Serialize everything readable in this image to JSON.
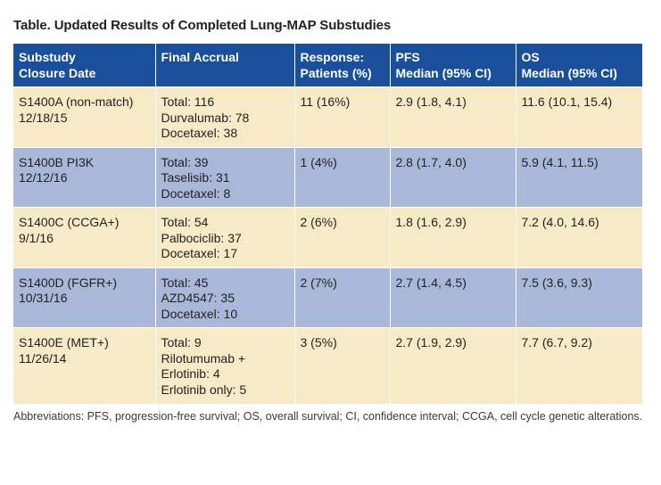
{
  "title": "Table. Updated Results of Completed Lung-MAP Substudies",
  "headers": {
    "substudy": [
      "Substudy",
      "Closure Date"
    ],
    "accrual": [
      "Final Accrual"
    ],
    "response": [
      "Response:",
      "Patients (%)"
    ],
    "pfs": [
      "PFS",
      "Median (95% CI)"
    ],
    "os": [
      "OS",
      "Median (95% CI)"
    ]
  },
  "rows": [
    {
      "substudy": [
        "S1400A (non-match)",
        "12/18/15"
      ],
      "accrual": [
        "Total: 116",
        "Durvalumab: 78",
        "Docetaxel: 38"
      ],
      "response": "11 (16%)",
      "pfs": "2.9 (1.8, 4.1)",
      "os": "11.6 (10.1, 15.4)"
    },
    {
      "substudy": [
        "S1400B PI3K",
        "12/12/16"
      ],
      "accrual": [
        "Total: 39",
        "Taselisib: 31",
        "Docetaxel: 8"
      ],
      "response": "1 (4%)",
      "pfs": "2.8 (1.7, 4.0)",
      "os": "5.9 (4.1, 11.5)"
    },
    {
      "substudy": [
        "S1400C (CCGA+)",
        "9/1/16"
      ],
      "accrual": [
        "Total: 54",
        "Palbociclib: 37",
        "Docetaxel: 17"
      ],
      "response": "2 (6%)",
      "pfs": "1.8 (1.6, 2.9)",
      "os": "7.2 (4.0, 14.6)"
    },
    {
      "substudy": [
        "S1400D (FGFR+)",
        "10/31/16"
      ],
      "accrual": [
        "Total: 45",
        "AZD4547: 35",
        "Docetaxel: 10"
      ],
      "response": "2 (7%)",
      "pfs": "2.7 (1.4, 4.5)",
      "os": "7.5 (3.6, 9.3)"
    },
    {
      "substudy": [
        "S1400E (MET+)",
        "11/26/14"
      ],
      "accrual": [
        "Total: 9",
        "Rilotumumab +",
        "Erlotinib: 4",
        "Erlotinib only: 5"
      ],
      "response": "3 (5%)",
      "pfs": "2.7 (1.9, 2.9)",
      "os": "7.7 (6.7, 9.2)"
    }
  ],
  "footnote": "Abbreviations: PFS, progression-free survival; OS, overall survival; CI, confidence interval; CCGA, cell cycle genetic alterations.",
  "colors": {
    "header_bg": "#1a4f9c",
    "row_light": "#f7ebc7",
    "row_blue": "#a9b8d9"
  }
}
